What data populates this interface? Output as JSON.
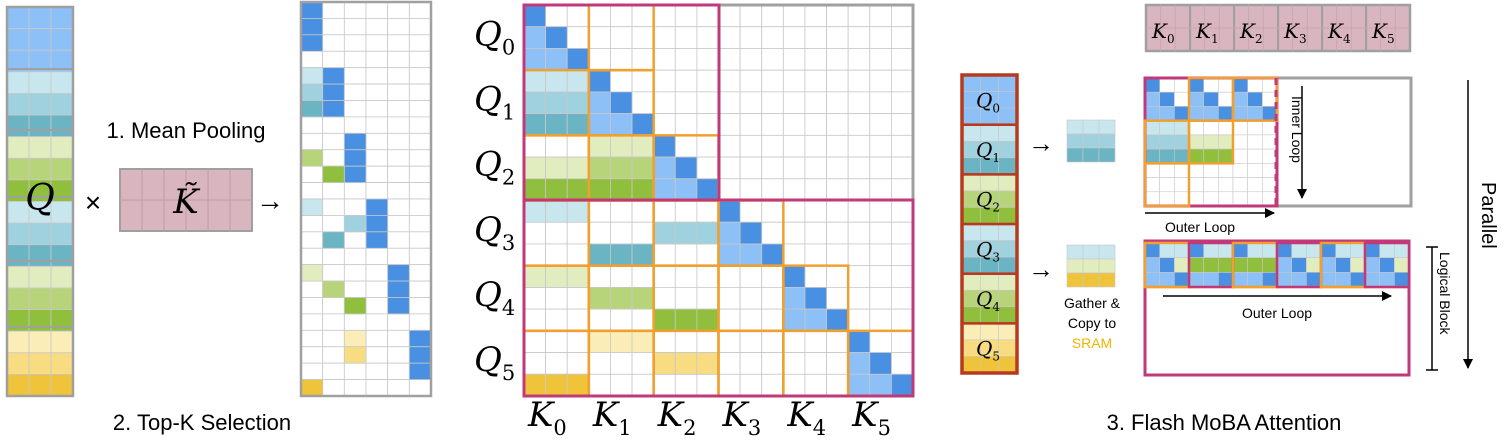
{
  "colors": {
    "blue": "#4a90e2",
    "blue_light": "#8cc0f6",
    "blue_pale": "#a9d5fb",
    "teal_pale": "#c8e6ee",
    "teal": "#9fd1de",
    "teal_dark": "#6ab4c4",
    "green_pale": "#e1ecbf",
    "green": "#b8d47a",
    "green_dark": "#8fbf3c",
    "yellow_pale": "#fbedb8",
    "yellow": "#f7dc82",
    "yellow_dark": "#efc43a",
    "pink": "#d9b5bf",
    "grid": "#c8c8c8",
    "grey_border": "#a0a0a0",
    "magenta_border": "#c2397a",
    "orange_border": "#f0a030",
    "red_border": "#b83a1e",
    "sram": "#f0b400"
  },
  "left": {
    "q_label": "Q",
    "times": "×",
    "k_tilde_label": "K̃",
    "arrow": "→",
    "step1": "1. Mean Pooling",
    "step2": "2. Top-K Selection"
  },
  "middle": {
    "q_labels": [
      "Q0",
      "Q1",
      "Q2",
      "Q3",
      "Q4",
      "Q5"
    ],
    "q_main": "Q",
    "k_main": "K",
    "subs": [
      "0",
      "1",
      "2",
      "3",
      "4",
      "5"
    ]
  },
  "right": {
    "k_labels_main": "K",
    "q_labels_main": "Q",
    "subs": [
      "0",
      "1",
      "2",
      "3",
      "4",
      "5"
    ],
    "arrow": "→",
    "inner_loop": "Inner Loop",
    "outer_loop_top": "Outer Loop",
    "outer_loop_bottom": "Outer Loop",
    "logical_block": "Logical Block",
    "gather_line1": "Gather &",
    "gather_line2": "Copy to",
    "sram": "SRAM",
    "parallel": "Parallel",
    "step3": "3. Flash MoBA Attention"
  }
}
